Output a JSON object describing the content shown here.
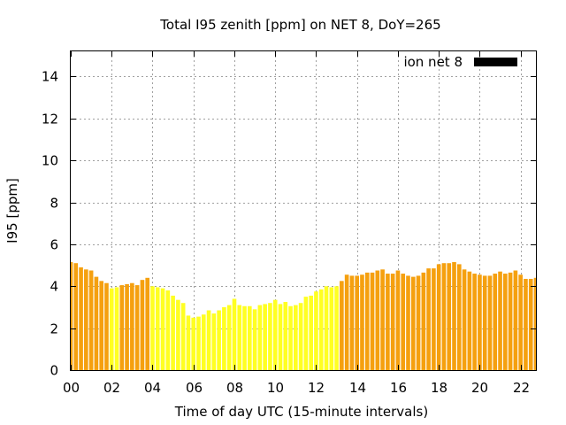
{
  "chart_data": {
    "type": "bar",
    "title": "Total I95 zenith [ppm] on NET 8, DoY=265",
    "xlabel": "Time of day UTC (15-minute intervals)",
    "ylabel": "I95 [ppm]",
    "xlim": [
      0,
      22.75
    ],
    "ylim": [
      0,
      15.2
    ],
    "xticks": [
      "00",
      "02",
      "04",
      "06",
      "08",
      "10",
      "12",
      "14",
      "16",
      "18",
      "20",
      "22"
    ],
    "yticks": [
      "0",
      "2",
      "4",
      "6",
      "8",
      "10",
      "12",
      "14"
    ],
    "grid": true,
    "legend": {
      "position": "top-right",
      "label": "ion net 8",
      "color": "#000000"
    },
    "colors": {
      "orange": "#f5a00f",
      "yellow": "#ffff22"
    },
    "bar_width_hours": 0.2,
    "series": [
      {
        "x": [
          0.0,
          0.25,
          0.5,
          0.75,
          1.0,
          1.25,
          1.5,
          1.75,
          2.0,
          2.25,
          2.5,
          2.75,
          3.0,
          3.25,
          3.5,
          3.75,
          4.0,
          4.25,
          4.5,
          4.75,
          5.0,
          5.25,
          5.5,
          5.75,
          6.0,
          6.25,
          6.5,
          6.75,
          7.0,
          7.25,
          7.5,
          7.75,
          8.0,
          8.25,
          8.5,
          8.75,
          9.0,
          9.25,
          9.5,
          9.75,
          10.0,
          10.25,
          10.5,
          10.75,
          11.0,
          11.25,
          11.5,
          11.75,
          12.0,
          12.25,
          12.5,
          12.75,
          13.0,
          13.25,
          13.5,
          13.75,
          14.0,
          14.25,
          14.5,
          14.75,
          15.0,
          15.25,
          15.5,
          15.75,
          16.0,
          16.25,
          16.5,
          16.75,
          17.0,
          17.25,
          17.5,
          17.75,
          18.0,
          18.25,
          18.5,
          18.75,
          19.0,
          19.25,
          19.5,
          19.75,
          20.0,
          20.25,
          20.5,
          20.75,
          21.0,
          21.25,
          21.5,
          21.75,
          22.0,
          22.25,
          22.5,
          22.75
        ],
        "values": [
          5.15,
          5.1,
          4.9,
          4.8,
          4.75,
          4.45,
          4.25,
          4.15,
          3.9,
          3.95,
          4.05,
          4.1,
          4.15,
          4.05,
          4.3,
          4.4,
          4.0,
          3.95,
          3.9,
          3.8,
          3.55,
          3.35,
          3.2,
          2.6,
          2.5,
          2.55,
          2.65,
          2.85,
          2.7,
          2.85,
          3.0,
          3.1,
          3.4,
          3.1,
          3.05,
          3.05,
          2.9,
          3.1,
          3.15,
          3.2,
          3.35,
          3.15,
          3.25,
          3.05,
          3.1,
          3.2,
          3.5,
          3.55,
          3.75,
          3.85,
          4.0,
          3.95,
          4.0,
          4.25,
          4.55,
          4.5,
          4.5,
          4.55,
          4.65,
          4.65,
          4.75,
          4.8,
          4.6,
          4.6,
          4.75,
          4.6,
          4.5,
          4.45,
          4.5,
          4.65,
          4.85,
          4.85,
          5.05,
          5.1,
          5.1,
          5.15,
          5.05,
          4.8,
          4.7,
          4.6,
          4.55,
          4.5,
          4.5,
          4.6,
          4.7,
          4.6,
          4.65,
          4.75,
          4.55,
          4.35,
          4.35,
          4.4
        ],
        "colors": [
          "orange",
          "orange",
          "orange",
          "orange",
          "orange",
          "orange",
          "orange",
          "orange",
          "yellow",
          "yellow",
          "orange",
          "orange",
          "orange",
          "orange",
          "orange",
          "orange",
          "yellow",
          "yellow",
          "yellow",
          "yellow",
          "yellow",
          "yellow",
          "yellow",
          "yellow",
          "yellow",
          "yellow",
          "yellow",
          "yellow",
          "yellow",
          "yellow",
          "yellow",
          "yellow",
          "yellow",
          "yellow",
          "yellow",
          "yellow",
          "yellow",
          "yellow",
          "yellow",
          "yellow",
          "yellow",
          "yellow",
          "yellow",
          "yellow",
          "yellow",
          "yellow",
          "yellow",
          "yellow",
          "yellow",
          "yellow",
          "yellow",
          "yellow",
          "yellow",
          "orange",
          "orange",
          "orange",
          "orange",
          "orange",
          "orange",
          "orange",
          "orange",
          "orange",
          "orange",
          "orange",
          "orange",
          "orange",
          "orange",
          "orange",
          "orange",
          "orange",
          "orange",
          "orange",
          "orange",
          "orange",
          "orange",
          "orange",
          "orange",
          "orange",
          "orange",
          "orange",
          "orange",
          "orange",
          "orange",
          "orange",
          "orange",
          "orange",
          "orange",
          "orange",
          "orange",
          "orange",
          "orange",
          "orange"
        ]
      }
    ]
  }
}
